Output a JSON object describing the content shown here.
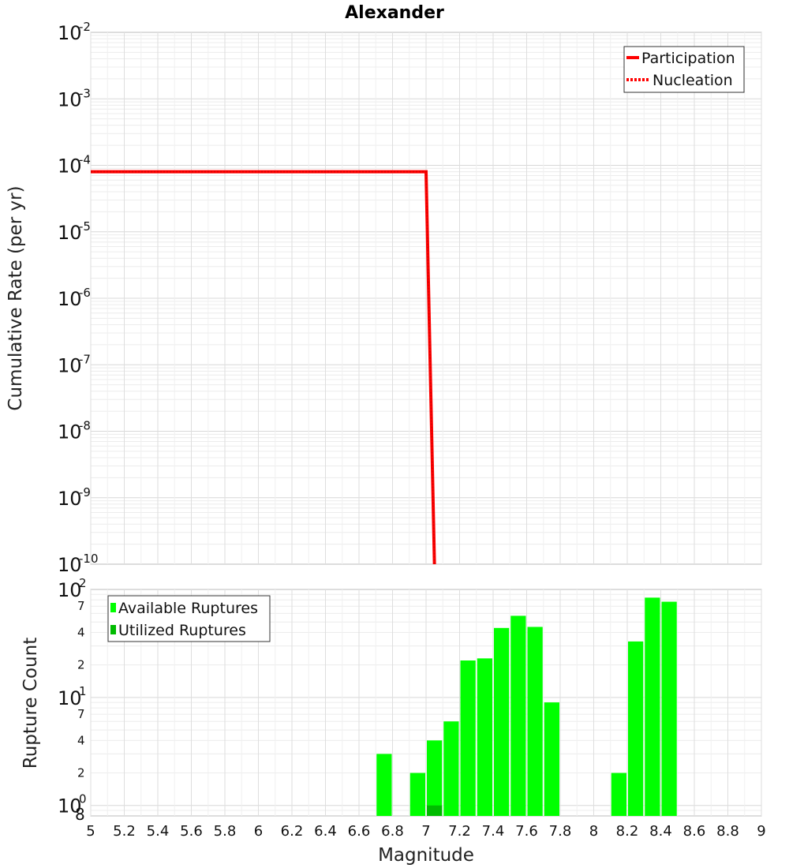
{
  "chart_data": [
    {
      "type": "line",
      "title": "Alexander",
      "ylabel": "Cumulative Rate (per yr)",
      "xlim": [
        5,
        9
      ],
      "ylim": [
        1e-10,
        0.01
      ],
      "yscale": "log",
      "grid": true,
      "legend_placement": "top-right",
      "legend": [
        "Participation",
        "Nucleation"
      ],
      "y_tick_labels": [
        {
          "base": "10",
          "exp": "-2"
        },
        {
          "base": "10",
          "exp": "-3"
        },
        {
          "base": "10",
          "exp": "-4"
        },
        {
          "base": "10",
          "exp": "-5"
        },
        {
          "base": "10",
          "exp": "-6"
        },
        {
          "base": "10",
          "exp": "-7"
        },
        {
          "base": "10",
          "exp": "-8"
        },
        {
          "base": "10",
          "exp": "-9"
        },
        {
          "base": "10",
          "exp": "-10"
        }
      ],
      "series": [
        {
          "name": "Participation",
          "style": "solid",
          "color": "#ff0000",
          "x": [
            5.0,
            7.0,
            7.05
          ],
          "y": [
            8e-05,
            8e-05,
            1e-10
          ]
        },
        {
          "name": "Nucleation",
          "style": "dotted",
          "color": "#ff0000",
          "x": [
            5.0,
            7.0,
            7.05
          ],
          "y": [
            8e-05,
            8e-05,
            1e-10
          ]
        }
      ]
    },
    {
      "type": "bar",
      "xlabel": "Magnitude",
      "ylabel": "Rupture Count",
      "xlim": [
        5,
        9
      ],
      "ylim": [
        0.8,
        100
      ],
      "yscale": "log",
      "grid": true,
      "legend_placement": "top-left",
      "legend": [
        "Available Ruptures",
        "Utilized Ruptures"
      ],
      "x_ticks": [
        "5",
        "5.2",
        "5.4",
        "5.6",
        "5.8",
        "6",
        "6.2",
        "6.4",
        "6.6",
        "6.8",
        "7",
        "7.2",
        "7.4",
        "7.6",
        "7.8",
        "8",
        "8.2",
        "8.4",
        "8.6",
        "8.8",
        "9"
      ],
      "y_major_ticks": [
        {
          "base": "10",
          "exp": "0",
          "value": 1
        },
        {
          "base": "10",
          "exp": "1",
          "value": 10
        },
        {
          "base": "10",
          "exp": "2",
          "value": 100
        }
      ],
      "y_minor_ticks": [
        {
          "label": "8",
          "value": 0.8
        },
        {
          "label": "2",
          "value": 2
        },
        {
          "label": "4",
          "value": 4
        },
        {
          "label": "7",
          "value": 7
        },
        {
          "label": "2",
          "value": 20
        },
        {
          "label": "4",
          "value": 40
        },
        {
          "label": "7",
          "value": 70
        }
      ],
      "series": [
        {
          "name": "Available Ruptures",
          "color": "#00ff00",
          "x": [
            6.75,
            6.95,
            7.05,
            7.15,
            7.25,
            7.35,
            7.45,
            7.55,
            7.65,
            7.75,
            8.15,
            8.25,
            8.35,
            8.45
          ],
          "values": [
            3,
            2,
            4,
            6,
            22,
            23,
            44,
            57,
            45,
            9,
            2,
            33,
            84,
            77
          ]
        },
        {
          "name": "Utilized Ruptures",
          "color": "#00bb00",
          "x": [
            7.05
          ],
          "values": [
            1
          ]
        }
      ]
    }
  ]
}
